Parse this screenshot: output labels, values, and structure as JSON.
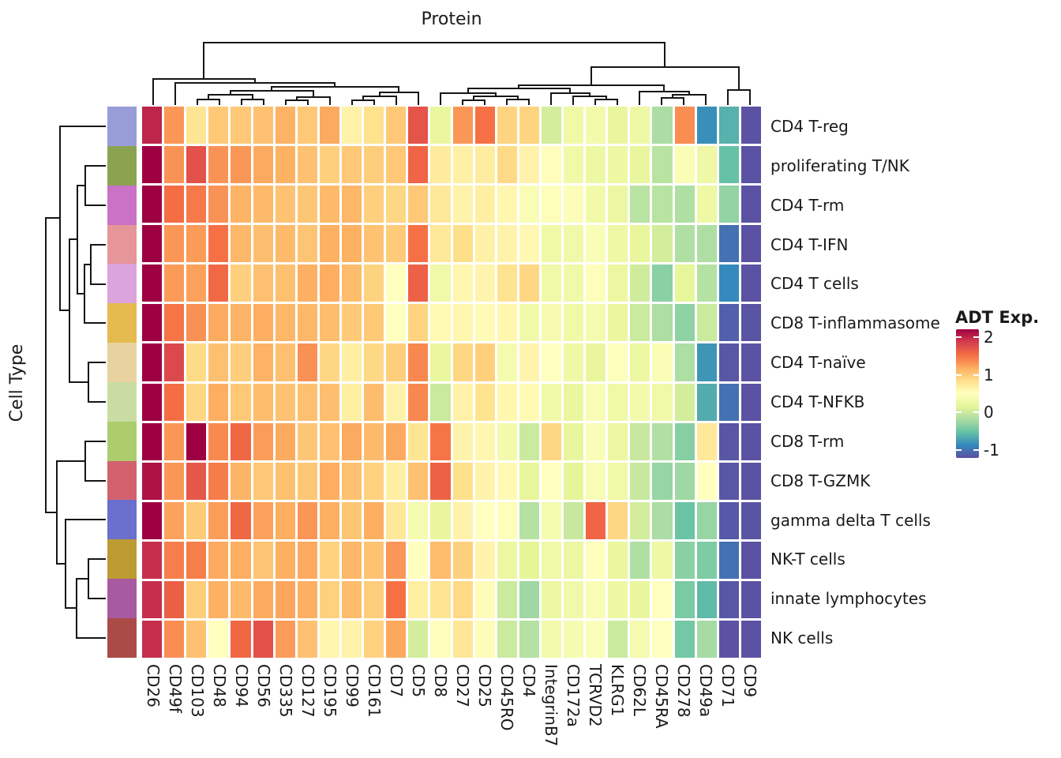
{
  "chart_data": {
    "type": "heatmap",
    "title": "Protein",
    "row_axis_label": "Cell Type",
    "legend": {
      "title": "ADT Exp.",
      "ticks": [
        2,
        1,
        0,
        -1
      ],
      "domain": [
        -1.2,
        2.2
      ]
    },
    "columns": [
      "CD26",
      "CD49f",
      "CD103",
      "CD48",
      "CD94",
      "CD56",
      "CD335",
      "CD127",
      "CD195",
      "CD99",
      "CD161",
      "CD7",
      "CD5",
      "CD8",
      "CD27",
      "CD25",
      "CD45RO",
      "CD4",
      "IntegrinB7",
      "CD172a",
      "TCRVD2",
      "KLRG1",
      "CD62L",
      "CD45RA",
      "CD278",
      "CD49a",
      "CD71",
      "CD9"
    ],
    "rows": [
      "CD4 T-reg",
      "proliferating T/NK",
      "CD4 T-rm",
      "CD4 T-IFN",
      "CD4 T cells",
      "CD8 T-inflammasome",
      "CD4 T-naïve",
      "CD4 T-NFKB",
      "CD8 T-rm",
      "CD8 T-GZMK",
      "gamma delta T cells",
      "NK-T cells",
      "innate lymphocytes",
      "NK cells"
    ],
    "values": [
      [
        2.0,
        1.3,
        0.78,
        1.0,
        1.0,
        1.05,
        1.15,
        1.0,
        1.2,
        0.65,
        0.82,
        1.0,
        1.7,
        0.22,
        1.3,
        1.5,
        0.92,
        0.92,
        0.05,
        0.28,
        0.33,
        0.2,
        0.27,
        -0.18,
        1.35,
        -0.82,
        -0.62,
        -1.18
      ],
      [
        2.2,
        1.32,
        1.72,
        1.32,
        1.3,
        1.2,
        1.16,
        1.05,
        0.95,
        1.0,
        0.97,
        1.0,
        1.58,
        0.72,
        0.67,
        0.7,
        0.88,
        0.64,
        0.52,
        0.3,
        0.26,
        0.26,
        0.2,
        -0.1,
        0.42,
        0.27,
        -0.52,
        -1.18
      ],
      [
        2.2,
        1.52,
        1.45,
        1.32,
        1.14,
        1.1,
        1.04,
        1.02,
        1.1,
        1.12,
        0.95,
        0.9,
        1.0,
        0.74,
        0.64,
        0.68,
        0.6,
        0.4,
        0.46,
        0.44,
        0.32,
        0.24,
        -0.1,
        -0.1,
        -0.15,
        0.27,
        -0.3,
        -1.18
      ],
      [
        2.2,
        1.3,
        1.28,
        1.5,
        1.12,
        1.07,
        1.1,
        1.03,
        1.16,
        1.16,
        1.04,
        0.98,
        1.5,
        0.75,
        0.84,
        0.66,
        0.63,
        0.58,
        0.28,
        0.3,
        0.42,
        0.27,
        0.2,
        0.05,
        -0.15,
        -0.16,
        -1.0,
        -1.18
      ],
      [
        2.2,
        1.28,
        1.25,
        1.55,
        0.95,
        1.06,
        1.06,
        1.17,
        1.18,
        1.08,
        0.93,
        0.5,
        1.6,
        0.3,
        0.6,
        0.62,
        0.8,
        0.9,
        0.3,
        0.3,
        0.46,
        0.24,
        0.03,
        -0.35,
        0.18,
        -0.12,
        -0.85,
        -1.18
      ],
      [
        2.2,
        1.48,
        1.33,
        1.2,
        1.14,
        1.18,
        1.12,
        1.12,
        1.08,
        0.99,
        0.99,
        0.5,
        0.92,
        0.57,
        0.6,
        0.56,
        0.6,
        0.3,
        0.38,
        0.28,
        0.35,
        0.22,
        0.0,
        -0.16,
        -0.32,
        0.0,
        -1.1,
        -1.17
      ],
      [
        2.2,
        1.78,
        0.87,
        1.06,
        0.96,
        1.15,
        1.06,
        1.33,
        0.9,
        0.68,
        0.89,
        0.96,
        1.38,
        0.22,
        0.9,
        0.95,
        0.35,
        0.62,
        0.5,
        0.27,
        0.2,
        0.47,
        0.26,
        0.42,
        -0.17,
        -0.78,
        -1.15,
        -1.18
      ],
      [
        2.2,
        1.52,
        0.9,
        1.18,
        1.0,
        1.08,
        1.04,
        1.06,
        1.07,
        0.68,
        1.08,
        0.63,
        1.38,
        0.0,
        0.65,
        0.8,
        0.6,
        0.57,
        0.3,
        0.22,
        0.4,
        0.28,
        0.33,
        0.3,
        0.05,
        -0.65,
        -1.0,
        -1.18
      ],
      [
        2.2,
        1.3,
        2.2,
        1.37,
        1.56,
        1.27,
        1.2,
        1.02,
        1.05,
        1.2,
        1.1,
        1.2,
        0.78,
        1.48,
        0.63,
        0.6,
        0.33,
        0.0,
        0.9,
        0.2,
        0.43,
        0.24,
        -0.02,
        -0.14,
        -0.36,
        0.75,
        -1.16,
        -1.18
      ],
      [
        2.1,
        1.3,
        1.68,
        1.44,
        1.14,
        1.0,
        1.06,
        1.01,
        1.18,
        1.06,
        0.94,
        0.68,
        1.05,
        1.6,
        0.83,
        0.64,
        0.57,
        0.18,
        0.5,
        0.17,
        0.4,
        0.3,
        -0.02,
        -0.28,
        -0.24,
        0.5,
        -1.15,
        -1.18
      ],
      [
        2.2,
        1.24,
        0.99,
        1.27,
        1.56,
        1.25,
        1.18,
        1.3,
        1.17,
        1.02,
        1.18,
        0.75,
        0.36,
        0.2,
        0.64,
        0.5,
        0.46,
        -0.12,
        0.36,
        -0.02,
        1.58,
        0.9,
        0.05,
        -0.18,
        -0.5,
        -0.28,
        -1.14,
        -1.17
      ],
      [
        1.95,
        1.43,
        1.43,
        1.2,
        1.18,
        1.03,
        1.17,
        1.2,
        0.93,
        1.12,
        1.04,
        1.3,
        0.5,
        1.09,
        0.95,
        0.64,
        0.24,
        0.17,
        0.3,
        0.24,
        0.48,
        0.22,
        -0.15,
        0.27,
        -0.34,
        -0.4,
        -1.0,
        -1.18
      ],
      [
        1.95,
        1.62,
        0.97,
        1.16,
        1.1,
        1.2,
        1.22,
        1.17,
        0.94,
        1.08,
        0.97,
        1.5,
        0.68,
        0.78,
        0.88,
        0.54,
        0.0,
        -0.24,
        0.24,
        0.3,
        0.4,
        0.26,
        0.2,
        0.5,
        -0.42,
        -0.56,
        -1.15,
        -1.18
      ],
      [
        1.95,
        1.35,
        1.05,
        0.5,
        1.56,
        1.72,
        1.27,
        1.05,
        0.6,
        0.63,
        0.94,
        1.21,
        0.05,
        0.52,
        0.77,
        0.54,
        0.0,
        -0.12,
        0.33,
        0.37,
        0.45,
        0.0,
        0.35,
        0.5,
        -0.45,
        -0.2,
        -1.18,
        -1.18
      ]
    ],
    "row_annotation_colors": [
      "#989dd8",
      "#8ba351",
      "#ca72c6",
      "#e69598",
      "#dca4dc",
      "#e5ba4e",
      "#e7d2a0",
      "#cadca4",
      "#adcd6c",
      "#d2616e",
      "#6b6fce",
      "#bd9b33",
      "#a75a9f",
      "#ab4b48"
    ],
    "colorscale": {
      "values": [
        -1.2,
        -0.86,
        -0.52,
        -0.18,
        0.16,
        0.5,
        0.84,
        1.18,
        1.52,
        1.86,
        2.2
      ],
      "colors": [
        "#5e4fa2",
        "#3288bd",
        "#66c2a5",
        "#abdda4",
        "#e6f598",
        "#ffffbf",
        "#fee08b",
        "#fdae61",
        "#f46d43",
        "#d53e4f",
        "#9e0142"
      ]
    },
    "layout_hints": {
      "grid": false,
      "legend_position": "right",
      "row_dendrogram": "left",
      "column_dendrogram": "top"
    }
  }
}
